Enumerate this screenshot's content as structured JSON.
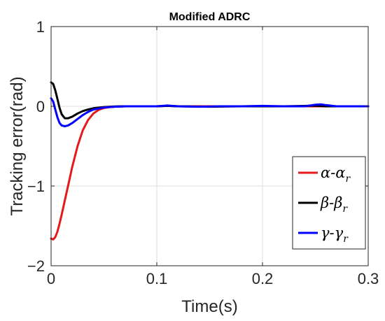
{
  "chart_data": {
    "type": "line",
    "title": "Modified ADRC",
    "xlabel": "Time(s)",
    "ylabel": "Tracking error(rad)",
    "xlim": [
      0,
      0.3
    ],
    "ylim": [
      -2,
      1
    ],
    "xticks": [
      0,
      0.1,
      0.2,
      0.3
    ],
    "xtick_labels": [
      "0",
      "0.1",
      "0.2",
      "0.3"
    ],
    "yticks": [
      -2,
      -1,
      0,
      1
    ],
    "ytick_labels": [
      "−2",
      "−1",
      "0",
      "1"
    ],
    "grid": true,
    "legend_position": "bottom-right",
    "series": [
      {
        "name": "α-α",
        "name_subscript": "r",
        "color": "#e41a1c",
        "x": [
          0,
          0.002,
          0.004,
          0.006,
          0.008,
          0.01,
          0.013,
          0.016,
          0.02,
          0.025,
          0.03,
          0.035,
          0.04,
          0.045,
          0.05,
          0.055,
          0.06,
          0.065,
          0.07,
          0.08,
          0.09,
          0.1,
          0.11,
          0.12,
          0.14,
          0.16,
          0.18,
          0.2,
          0.22,
          0.24,
          0.26,
          0.28,
          0.3
        ],
        "y": [
          -1.66,
          -1.67,
          -1.64,
          -1.57,
          -1.47,
          -1.36,
          -1.18,
          -1.0,
          -0.76,
          -0.5,
          -0.3,
          -0.17,
          -0.09,
          -0.045,
          -0.022,
          -0.01,
          -0.004,
          -0.002,
          0.0,
          0.0,
          0.0,
          0.0,
          0.005,
          0.0,
          0.0,
          0.0,
          0.0,
          0.0,
          0.0,
          0.0,
          0.0,
          0.0,
          0.0
        ]
      },
      {
        "name": "β-β",
        "name_subscript": "r",
        "color": "#000000",
        "x": [
          0,
          0.002,
          0.004,
          0.006,
          0.008,
          0.01,
          0.013,
          0.016,
          0.02,
          0.025,
          0.03,
          0.035,
          0.04,
          0.05,
          0.06,
          0.07,
          0.08,
          0.1,
          0.11,
          0.12,
          0.15,
          0.18,
          0.2,
          0.22,
          0.25,
          0.26,
          0.28,
          0.3
        ],
        "y": [
          0.3,
          0.28,
          0.2,
          0.09,
          -0.02,
          -0.1,
          -0.15,
          -0.15,
          -0.13,
          -0.09,
          -0.06,
          -0.04,
          -0.025,
          -0.01,
          -0.003,
          0.0,
          0.0,
          0.0,
          0.005,
          0.0,
          -0.005,
          0.0,
          0.0,
          0.0,
          0.008,
          0.0,
          0.0,
          0.0
        ]
      },
      {
        "name": "γ-γ",
        "name_subscript": "r",
        "color": "#0000ff",
        "x": [
          0,
          0.002,
          0.004,
          0.006,
          0.008,
          0.01,
          0.013,
          0.016,
          0.02,
          0.025,
          0.03,
          0.035,
          0.04,
          0.05,
          0.06,
          0.07,
          0.08,
          0.1,
          0.11,
          0.12,
          0.14,
          0.16,
          0.18,
          0.2,
          0.22,
          0.24,
          0.25,
          0.255,
          0.26,
          0.27,
          0.28,
          0.3
        ],
        "y": [
          0.1,
          0.06,
          -0.04,
          -0.14,
          -0.21,
          -0.24,
          -0.25,
          -0.24,
          -0.21,
          -0.16,
          -0.11,
          -0.07,
          -0.04,
          -0.015,
          -0.005,
          0.0,
          0.0,
          0.0,
          0.01,
          0.0,
          -0.005,
          0.0,
          0.0,
          0.005,
          0.0,
          0.0,
          0.02,
          0.025,
          0.015,
          0.0,
          0.0,
          0.0
        ]
      }
    ]
  }
}
